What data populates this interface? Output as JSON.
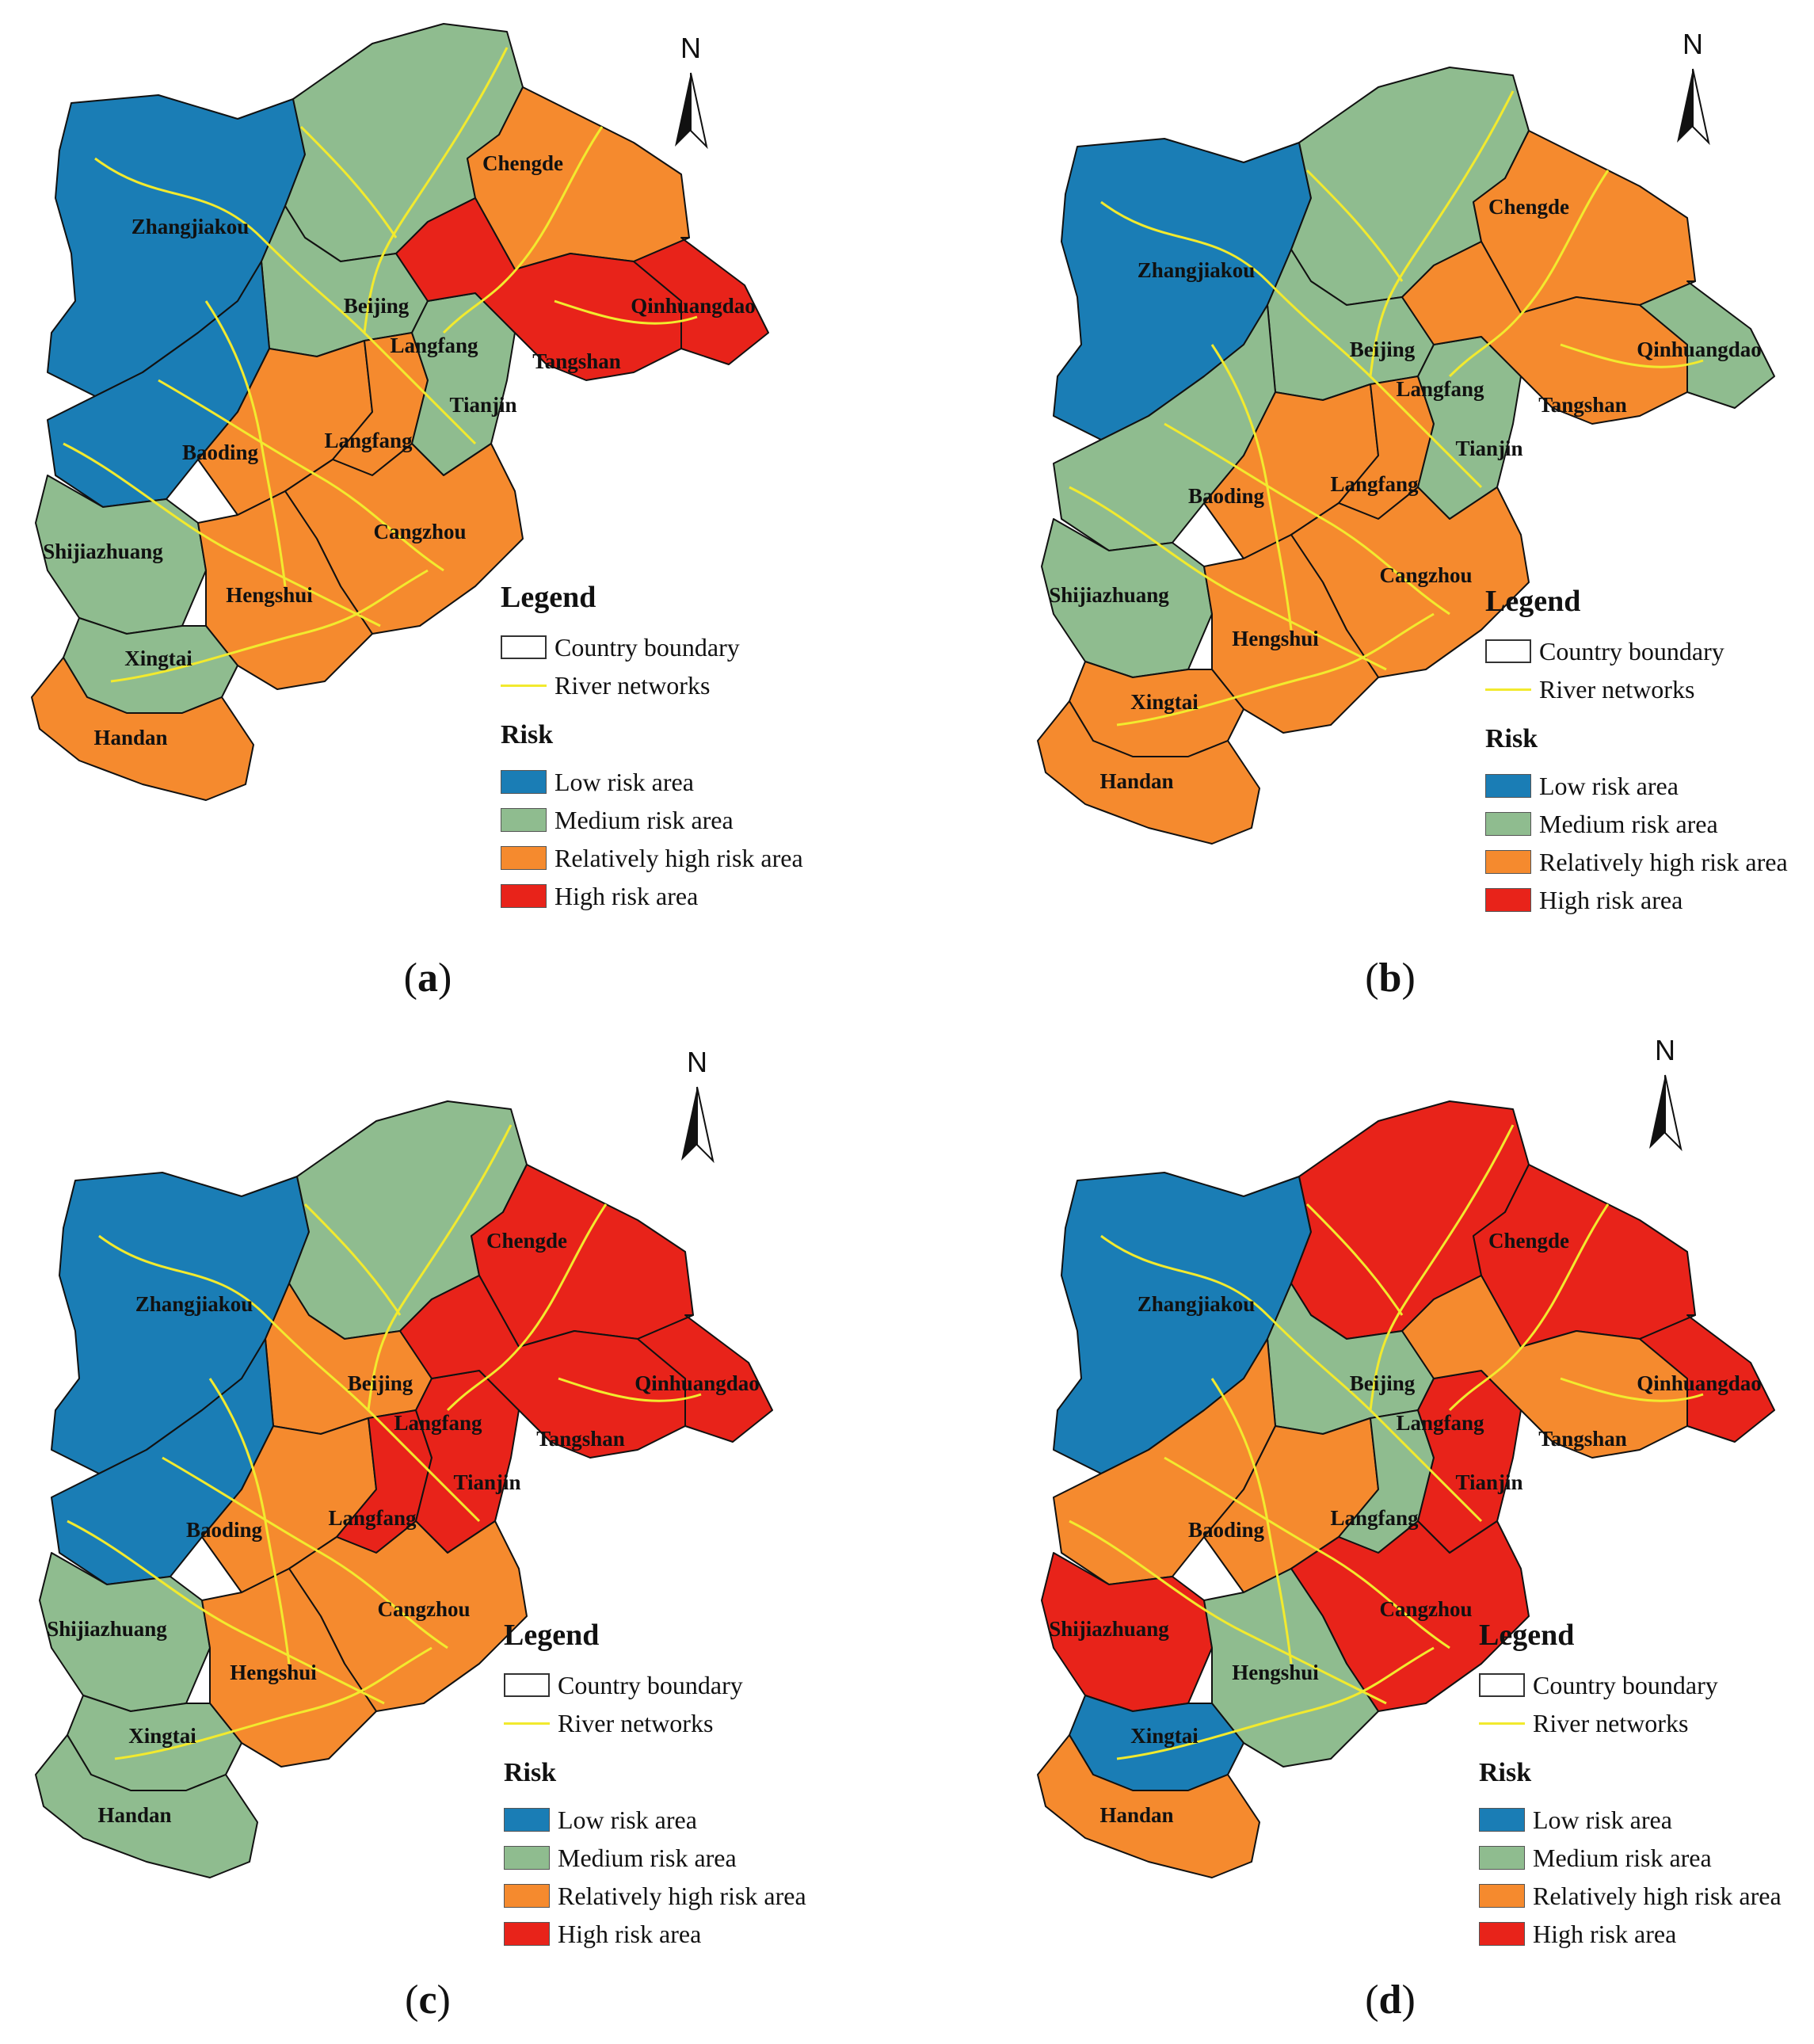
{
  "north_label": "N",
  "legend": {
    "title": "Legend",
    "country_boundary": "Country boundary",
    "river_networks": "River networks",
    "risk_title": "Risk",
    "classes": [
      {
        "label": "Low risk area",
        "color": "#1a7db5"
      },
      {
        "label": "Medium risk area",
        "color": "#8fbc8f"
      },
      {
        "label": "Relatively high risk area",
        "color": "#f58a2e"
      },
      {
        "label": "High risk area",
        "color": "#e8231a"
      }
    ]
  },
  "river_color": "#f2ea2e",
  "city_labels": [
    "Chengde",
    "Zhangjiakou",
    "Beijing",
    "Langfang",
    "Qinhuangdao",
    "Tangshan",
    "Tianjin",
    "Baoding",
    "Langfang",
    "Cangzhou",
    "Shijiazhuang",
    "Hengshui",
    "Xingtai",
    "Handan"
  ],
  "panels": [
    {
      "label": "a",
      "risk": {
        "Zhangjiakou": 0,
        "Chengde": 1,
        "Chengde_E": 2,
        "Beijing": 1,
        "Baoding_W": 0,
        "Baoding_E": 2,
        "Langfang": 2,
        "Tianjin": 1,
        "Tangshan": 3,
        "Qinhuangdao": 3,
        "Shijiazhuang": 1,
        "Cangzhou": 2,
        "Hengshui": 2,
        "Xingtai": 1,
        "Handan": 2
      }
    },
    {
      "label": "b",
      "risk": {
        "Zhangjiakou": 0,
        "Chengde": 1,
        "Chengde_E": 2,
        "Beijing": 1,
        "Baoding_W": 1,
        "Baoding_E": 2,
        "Langfang": 2,
        "Tianjin": 1,
        "Tangshan": 2,
        "Qinhuangdao": 1,
        "Shijiazhuang": 1,
        "Cangzhou": 2,
        "Hengshui": 2,
        "Xingtai": 2,
        "Handan": 2
      }
    },
    {
      "label": "c",
      "risk": {
        "Zhangjiakou": 0,
        "Chengde": 1,
        "Chengde_E": 3,
        "Beijing": 2,
        "Baoding_W": 0,
        "Baoding_E": 2,
        "Langfang": 3,
        "Tianjin": 3,
        "Tangshan": 3,
        "Qinhuangdao": 3,
        "Shijiazhuang": 1,
        "Cangzhou": 2,
        "Hengshui": 2,
        "Xingtai": 1,
        "Handan": 1
      }
    },
    {
      "label": "d",
      "risk": {
        "Zhangjiakou": 0,
        "Chengde": 3,
        "Chengde_E": 3,
        "Beijing": 1,
        "Baoding_W": 2,
        "Baoding_E": 2,
        "Langfang": 1,
        "Tianjin": 3,
        "Tangshan": 2,
        "Qinhuangdao": 3,
        "Shijiazhuang": 3,
        "Cangzhou": 3,
        "Hengshui": 1,
        "Xingtai": 0,
        "Handan": 2
      }
    }
  ]
}
